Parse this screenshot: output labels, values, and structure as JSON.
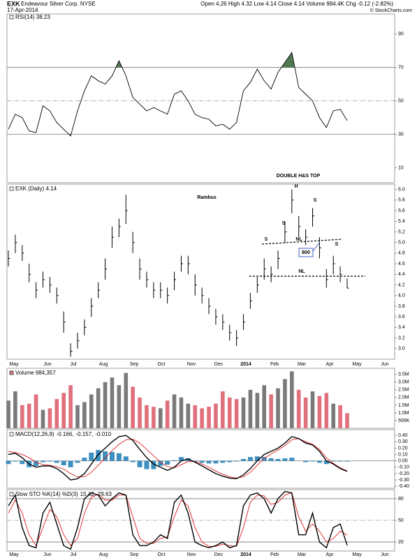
{
  "header": {
    "symbol": "EXK",
    "name": "Endeavour Silver Corp. NYSE",
    "date": "17-Apr-2014",
    "quote": "Open 4.26 High 4.32 Low 4.14 Close 4.14 Volume 984.4K Chg -0.12 (-2.82%)",
    "credit": "© StockCharts.com"
  },
  "x_tick_labels": [
    "May",
    "Jun",
    "Jul",
    "Aug",
    "Sep",
    "Oct",
    "Nov",
    "Dec",
    "2014",
    "Feb",
    "Mar",
    "Apr",
    "May",
    "Jun"
  ],
  "chart_data": [
    {
      "type": "rsi",
      "legend": "RSI(14) 38.23",
      "series": [
        {
          "color": "#000000",
          "values": [
            33,
            42,
            40,
            32,
            31,
            47,
            44,
            37,
            33,
            29,
            44,
            56,
            65,
            62,
            60,
            65,
            74,
            65,
            52,
            48,
            44,
            46,
            44,
            42,
            54,
            56,
            50,
            42,
            40,
            39,
            35,
            36,
            33,
            37,
            56,
            61,
            69,
            62,
            57,
            67,
            73,
            79,
            58,
            54,
            50,
            40,
            34,
            44,
            45,
            38.23
          ]
        }
      ],
      "ylim": [
        1,
        102
      ],
      "yticks": [
        10,
        30,
        50,
        70,
        90
      ],
      "solid_lines": [
        30,
        70
      ],
      "dashed_lines": [
        50
      ],
      "overbought": 70,
      "oversold": 30,
      "overbought_color": "#4f7a4f",
      "oversold_color": "#c8505a",
      "annotations": [
        "DOUBLE H&S TOP"
      ]
    },
    {
      "type": "ohlc",
      "legend": "EXK (Daily) 4.14",
      "color": "#000000",
      "high": [
        4.85,
        5.15,
        4.95,
        4.6,
        4.25,
        4.45,
        4.35,
        4.15,
        3.7,
        3.1,
        3.3,
        3.55,
        3.95,
        4.25,
        4.7,
        5.3,
        5.45,
        5.9,
        5.2,
        4.7,
        4.45,
        4.25,
        4.25,
        4.15,
        4.45,
        4.75,
        4.75,
        4.4,
        4.15,
        3.95,
        3.75,
        3.65,
        3.45,
        3.35,
        3.65,
        4.05,
        4.35,
        4.7,
        4.55,
        4.85,
        5.4,
        6.0,
        5.5,
        5.25,
        5.65,
        5.1,
        4.5,
        4.75,
        4.55,
        4.32
      ],
      "low": [
        4.55,
        4.8,
        4.65,
        4.25,
        3.95,
        4.15,
        4.05,
        3.85,
        3.3,
        2.85,
        3.0,
        3.25,
        3.6,
        3.95,
        4.3,
        4.9,
        5.1,
        5.35,
        4.8,
        4.3,
        4.15,
        3.95,
        3.95,
        3.85,
        4.1,
        4.45,
        4.4,
        4.0,
        3.85,
        3.65,
        3.45,
        3.35,
        3.15,
        3.05,
        3.35,
        3.75,
        4.05,
        4.3,
        4.25,
        4.5,
        5.0,
        5.55,
        5.1,
        4.95,
        5.3,
        4.7,
        4.15,
        4.4,
        4.25,
        4.14
      ],
      "close": [
        4.7,
        5.0,
        4.8,
        4.4,
        4.1,
        4.3,
        4.2,
        4.0,
        3.5,
        2.95,
        3.15,
        3.4,
        3.8,
        4.1,
        4.5,
        5.1,
        5.3,
        5.6,
        5.0,
        4.5,
        4.3,
        4.1,
        4.1,
        4.0,
        4.3,
        4.6,
        4.6,
        4.2,
        4.0,
        3.8,
        3.6,
        3.5,
        3.3,
        3.2,
        3.5,
        3.9,
        4.2,
        4.5,
        4.4,
        4.7,
        5.2,
        5.8,
        5.3,
        5.1,
        5.5,
        4.9,
        4.3,
        4.6,
        4.4,
        4.14
      ],
      "ylim": [
        2.8,
        6.1
      ],
      "yticks": [
        {
          "value": 3.0,
          "label": "3.0"
        },
        3.2,
        3.4,
        3.6,
        3.8,
        {
          "value": 4.0,
          "label": "4.0"
        },
        4.2,
        4.4,
        4.6,
        4.8,
        {
          "value": 5.0,
          "label": "5.0"
        },
        5.2,
        5.4,
        5.6,
        5.8,
        {
          "value": 6.0,
          "label": "6.0"
        }
      ],
      "annotations": [
        "Rambus",
        "H",
        "S",
        "S",
        "S",
        "S",
        "NL",
        "NL",
        "800"
      ]
    },
    {
      "type": "volume",
      "legend": "Volume 984,357",
      "up_color": "#7a7a7a",
      "down_color": "#e0707c",
      "values": [
        1800000,
        2400000,
        1500000,
        1600000,
        2200000,
        1200000,
        1300000,
        1900000,
        2300000,
        2800000,
        1500000,
        1700000,
        2200000,
        2600000,
        3000000,
        3300000,
        2800000,
        3600000,
        2700000,
        2000000,
        1500000,
        1400000,
        1300000,
        1800000,
        2200000,
        2000000,
        1600000,
        1500000,
        1300000,
        1400000,
        1600000,
        2400000,
        2000000,
        1900000,
        2000000,
        2500000,
        2300000,
        2800000,
        2200000,
        2600000,
        3200000,
        3700000,
        2500000,
        2000000,
        2400000,
        2100000,
        2300000,
        1600000,
        1500000,
        984357
      ],
      "ylim": [
        0,
        3900000
      ],
      "yticks": [
        {
          "value": 500000,
          "label": "500K"
        },
        {
          "value": 1000000,
          "label": "1.0M"
        },
        {
          "value": 1500000,
          "label": "1.5M"
        },
        {
          "value": 2000000,
          "label": "2.0M"
        },
        {
          "value": 2500000,
          "label": "2.5M"
        },
        {
          "value": 3000000,
          "label": "3.0M"
        },
        {
          "value": 3500000,
          "label": "3.5M"
        }
      ]
    },
    {
      "type": "macd",
      "legend_parts": [
        "MACD(12,26,9)",
        "-0.166,",
        "-0.157,",
        "-0.010"
      ],
      "series": [
        {
          "color": "#000000",
          "values": [
            0.1,
            0.12,
            0.05,
            -0.05,
            -0.1,
            -0.08,
            -0.08,
            -0.12,
            -0.2,
            -0.3,
            -0.28,
            -0.2,
            -0.05,
            0.1,
            0.2,
            0.3,
            0.38,
            0.4,
            0.32,
            0.18,
            0.05,
            -0.05,
            -0.1,
            -0.15,
            -0.1,
            0.0,
            0.03,
            -0.02,
            -0.08,
            -0.14,
            -0.2,
            -0.24,
            -0.27,
            -0.28,
            -0.22,
            -0.12,
            0.0,
            0.1,
            0.15,
            0.2,
            0.28,
            0.38,
            0.35,
            0.28,
            0.25,
            0.15,
            0.0,
            -0.05,
            -0.12,
            -0.166
          ]
        },
        {
          "color": "#e02020",
          "values": [
            0.15,
            0.13,
            0.1,
            0.05,
            -0.02,
            -0.06,
            -0.07,
            -0.09,
            -0.13,
            -0.2,
            -0.25,
            -0.25,
            -0.18,
            -0.07,
            0.05,
            0.16,
            0.26,
            0.33,
            0.34,
            0.28,
            0.18,
            0.08,
            -0.02,
            -0.09,
            -0.11,
            -0.06,
            -0.01,
            -0.01,
            -0.05,
            -0.1,
            -0.16,
            -0.21,
            -0.25,
            -0.27,
            -0.25,
            -0.18,
            -0.07,
            0.04,
            0.11,
            0.17,
            0.24,
            0.33,
            0.35,
            0.3,
            0.26,
            0.18,
            0.05,
            -0.04,
            -0.11,
            -0.157
          ]
        }
      ],
      "histogram": {
        "color": "#3d8fc0",
        "values": [
          -0.05,
          -0.01,
          -0.05,
          -0.1,
          -0.08,
          -0.02,
          -0.01,
          -0.03,
          -0.07,
          -0.1,
          -0.03,
          0.05,
          0.13,
          0.17,
          0.15,
          0.14,
          0.12,
          0.07,
          -0.02,
          -0.1,
          -0.13,
          -0.13,
          -0.08,
          -0.06,
          0.01,
          0.06,
          0.04,
          -0.01,
          -0.03,
          -0.04,
          -0.04,
          -0.03,
          -0.02,
          -0.01,
          0.03,
          0.06,
          0.07,
          0.06,
          0.04,
          0.03,
          0.04,
          0.05,
          0.0,
          -0.02,
          -0.01,
          -0.03,
          -0.05,
          -0.01,
          -0.01,
          -0.01
        ]
      },
      "ylim": [
        -0.43,
        0.49
      ],
      "yticks": [
        {
          "value": -0.4,
          "label": "-0.40"
        },
        {
          "value": -0.3,
          "label": "-0.30"
        },
        {
          "value": -0.2,
          "label": "-0.20"
        },
        {
          "value": -0.1,
          "label": "-0.10"
        },
        {
          "value": 0,
          "label": "0.00"
        },
        {
          "value": 0.1,
          "label": "0.10"
        },
        {
          "value": 0.2,
          "label": "0.20"
        },
        {
          "value": 0.3,
          "label": "0.30"
        },
        {
          "value": 0.4,
          "label": "0.40"
        }
      ],
      "solid_lines": [
        0
      ]
    },
    {
      "type": "stochastic",
      "legend_parts": [
        "Slow STO %K(14) %D(3)",
        "15.42,",
        "29.63"
      ],
      "series": [
        {
          "color": "#000000",
          "values": [
            70,
            85,
            40,
            15,
            12,
            60,
            75,
            45,
            15,
            10,
            40,
            80,
            88,
            85,
            70,
            80,
            88,
            85,
            30,
            15,
            15,
            20,
            30,
            25,
            75,
            85,
            60,
            20,
            15,
            12,
            15,
            20,
            12,
            15,
            70,
            85,
            88,
            80,
            60,
            80,
            90,
            88,
            30,
            30,
            60,
            20,
            12,
            40,
            45,
            15.42
          ]
        },
        {
          "color": "#e02020",
          "values": [
            60,
            78,
            60,
            30,
            15,
            40,
            65,
            55,
            30,
            15,
            25,
            60,
            82,
            86,
            78,
            78,
            85,
            85,
            55,
            25,
            18,
            18,
            25,
            27,
            55,
            78,
            70,
            40,
            20,
            14,
            14,
            17,
            15,
            14,
            40,
            75,
            85,
            84,
            72,
            75,
            85,
            88,
            55,
            35,
            45,
            35,
            20,
            25,
            35,
            29.63
          ]
        }
      ],
      "ylim": [
        7.5,
        92.5
      ],
      "yticks": [
        20,
        50,
        80
      ],
      "solid_lines": [
        20,
        80
      ],
      "dashed_lines": [
        50
      ]
    }
  ]
}
